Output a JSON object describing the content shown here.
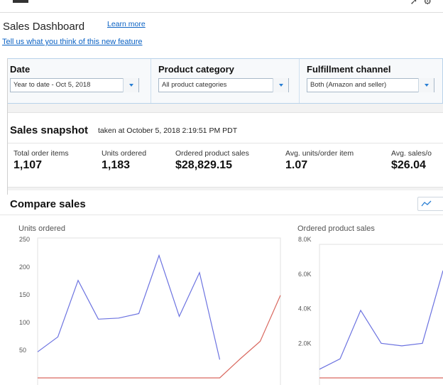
{
  "header": {
    "title": "Sales Dashboard",
    "learn_more": "Learn more",
    "feedback": "Tell us what you think of this new feature"
  },
  "filters": [
    {
      "label": "Date",
      "value": "Year to date - Oct 5, 2018"
    },
    {
      "label": "Product category",
      "value": "All product categories"
    },
    {
      "label": "Fulfillment channel",
      "value": "Both (Amazon and seller)"
    }
  ],
  "snapshot": {
    "title": "Sales snapshot",
    "subtitle": "taken at October 5, 2018 2:19:51 PM PDT",
    "metrics": [
      {
        "label": "Total order items",
        "value": "1,107"
      },
      {
        "label": "Units ordered",
        "value": "1,183"
      },
      {
        "label": "Ordered product sales",
        "value": "$28,829.15"
      },
      {
        "label": "Avg. units/order item",
        "value": "1.07"
      },
      {
        "label": "Avg. sales/o",
        "value": "$26.04"
      }
    ]
  },
  "compare": {
    "title": "Compare sales"
  },
  "colors": {
    "series_current": "#6b72e0",
    "series_compare": "#d9685f",
    "link": "#0b62c4"
  },
  "chart_data": [
    {
      "type": "line",
      "title": "Units ordered",
      "ylim": [
        0,
        250
      ],
      "yticks": [
        250,
        200,
        150,
        100,
        50
      ],
      "grid": false,
      "series": [
        {
          "values": [
            47,
            74,
            176,
            106,
            108,
            116,
            221,
            111,
            190,
            33
          ]
        },
        {
          "values": [
            0,
            0,
            0,
            0,
            0,
            0,
            0,
            0,
            0,
            0,
            34,
            66,
            149
          ]
        }
      ]
    },
    {
      "type": "line",
      "title": "Ordered product sales",
      "ylim": [
        0,
        8000
      ],
      "yticks": [
        "8.0K",
        "6.0K",
        "4.0K",
        "2.0K"
      ],
      "ytick_values": [
        8000,
        6000,
        4000,
        2000
      ],
      "grid": false,
      "series": [
        {
          "values": [
            500,
            1100,
            3900,
            2000,
            1850,
            2000,
            6200
          ]
        },
        {
          "values": [
            0,
            0,
            0,
            0,
            0,
            0,
            0
          ]
        }
      ]
    }
  ]
}
